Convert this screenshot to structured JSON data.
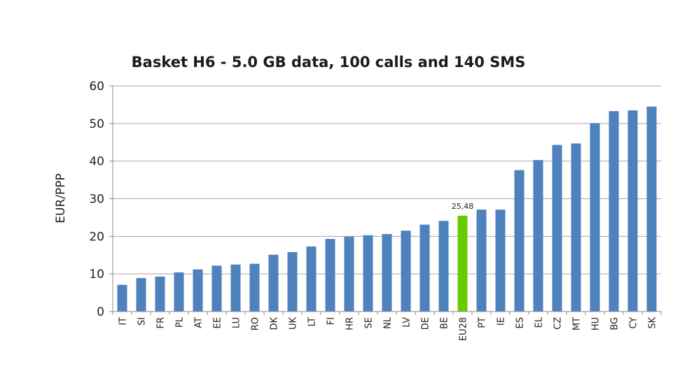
{
  "chart_data": {
    "type": "bar",
    "title": "Basket H6 - 5.0 GB data, 100 calls and 140 SMS",
    "xlabel": "",
    "ylabel": "EUR/PPP",
    "ylim": [
      0,
      60
    ],
    "yticks": [
      0,
      10,
      20,
      30,
      40,
      50,
      60
    ],
    "grid": true,
    "legend": "none",
    "categories": [
      "IT",
      "SI",
      "FR",
      "PL",
      "AT",
      "EE",
      "LU",
      "RO",
      "DK",
      "UK",
      "LT",
      "FI",
      "HR",
      "SE",
      "NL",
      "LV",
      "DE",
      "BE",
      "EU28",
      "PT",
      "IE",
      "ES",
      "EL",
      "CZ",
      "MT",
      "HU",
      "BG",
      "CY",
      "SK"
    ],
    "values": [
      7.1,
      8.9,
      9.3,
      10.4,
      11.2,
      12.2,
      12.5,
      12.7,
      15.1,
      15.8,
      17.3,
      19.3,
      19.9,
      20.3,
      20.6,
      21.5,
      23.1,
      24.1,
      25.48,
      27.1,
      27.1,
      37.6,
      40.3,
      44.3,
      44.7,
      50.1,
      53.3,
      53.5,
      54.5
    ],
    "highlight": {
      "category": "EU28",
      "label": "25,48"
    },
    "colors": {
      "bar": "#4f81bd",
      "highlight": "#66cc00"
    }
  }
}
